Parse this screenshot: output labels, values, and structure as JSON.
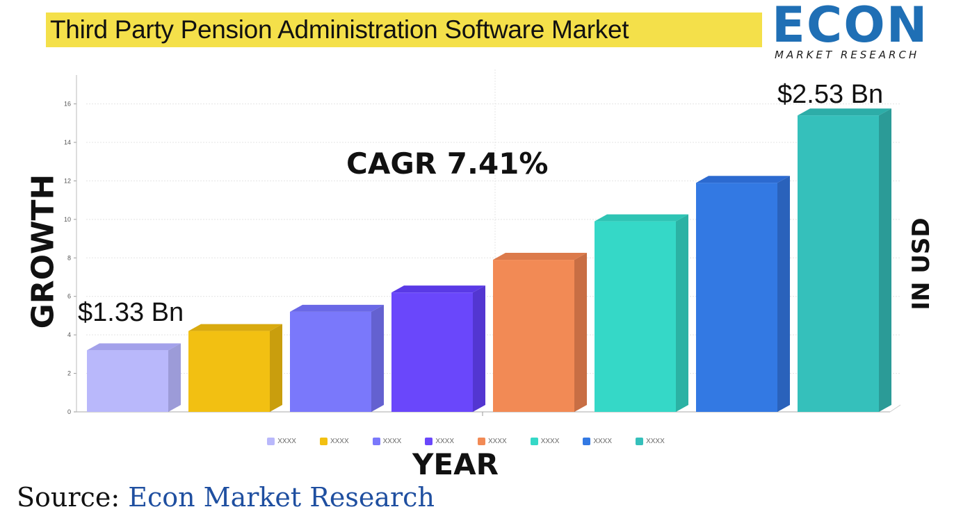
{
  "title": "Third Party Pension Administration Software Market",
  "logo": {
    "word": "ECON",
    "tagline": "MARKET RESEARCH"
  },
  "annotations": {
    "start_value": "$1.33 Bn",
    "end_value": "$2.53 Bn",
    "cagr": "CAGR 7.41%"
  },
  "axis_labels": {
    "left": "GROWTH",
    "right": "IN USD",
    "bottom": "YEAR"
  },
  "source": {
    "label": "Source:",
    "value": "Econ Market Research"
  },
  "chart_data": {
    "type": "bar",
    "categories": [
      "XXXX",
      "XXXX",
      "XXXX",
      "XXXX",
      "XXXX",
      "XXXX",
      "XXXX",
      "XXXX"
    ],
    "values": [
      3.2,
      4.2,
      5.2,
      6.2,
      7.9,
      9.9,
      11.9,
      15.4
    ],
    "ylim": [
      0,
      17.5
    ],
    "yticks": [
      0,
      2,
      4,
      6,
      8,
      10,
      12,
      14,
      16
    ],
    "grid": true,
    "legend_position": "bottom",
    "colors": [
      "#b9b8fb",
      "#f2c012",
      "#7a78fb",
      "#6a47fb",
      "#f28a55",
      "#35d8c7",
      "#3379e3",
      "#35c0bb"
    ],
    "side_colors": [
      "#9c9bd8",
      "#c99e0d",
      "#6461d0",
      "#5336d1",
      "#c86e44",
      "#2bb2a4",
      "#2a62bb",
      "#2b9b97"
    ],
    "top_colors": [
      "#a3a1ea",
      "#d9aa0f",
      "#6a68e6",
      "#5a3ae6",
      "#dc7a4b",
      "#2ec4b4",
      "#2c6ad0",
      "#2dada8"
    ]
  }
}
